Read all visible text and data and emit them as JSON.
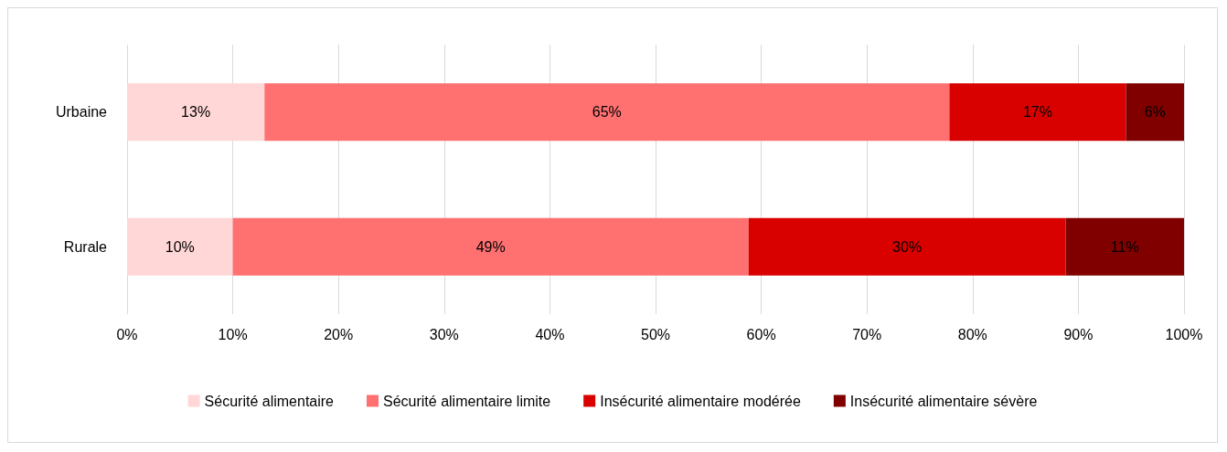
{
  "chart_data": {
    "type": "bar",
    "orientation": "horizontal",
    "stacked": true,
    "categories": [
      "Urbaine",
      "Rurale"
    ],
    "series": [
      {
        "name": "Sécurité alimentaire",
        "color": "#ffd7d7",
        "values": [
          13,
          10
        ],
        "value_labels": [
          "13%",
          "10%"
        ]
      },
      {
        "name": "Sécurité alimentaire limite",
        "color": "#ff7171",
        "values": [
          64.8,
          48.8
        ],
        "value_labels": [
          "65%",
          "49%"
        ]
      },
      {
        "name": "Insécurité alimentaire modérée",
        "color": "#d90000",
        "values": [
          16.7,
          30
        ],
        "value_labels": [
          "17%",
          "30%"
        ]
      },
      {
        "name": "Insécurité alimentaire sévère",
        "color": "#800000",
        "values": [
          5.5,
          11.2
        ],
        "value_labels": [
          "6%",
          "11%"
        ]
      }
    ],
    "xlim": [
      0,
      100
    ],
    "xticks": [
      {
        "value": 0,
        "label": "0%"
      },
      {
        "value": 10,
        "label": "10%"
      },
      {
        "value": 20,
        "label": "20%"
      },
      {
        "value": 30,
        "label": "30%"
      },
      {
        "value": 40,
        "label": "40%"
      },
      {
        "value": 50,
        "label": "50%"
      },
      {
        "value": 60,
        "label": "60%"
      },
      {
        "value": 70,
        "label": "70%"
      },
      {
        "value": 80,
        "label": "80%"
      },
      {
        "value": 90,
        "label": "90%"
      },
      {
        "value": 100,
        "label": "100%"
      }
    ],
    "grid": "x",
    "legend": "bottom"
  }
}
